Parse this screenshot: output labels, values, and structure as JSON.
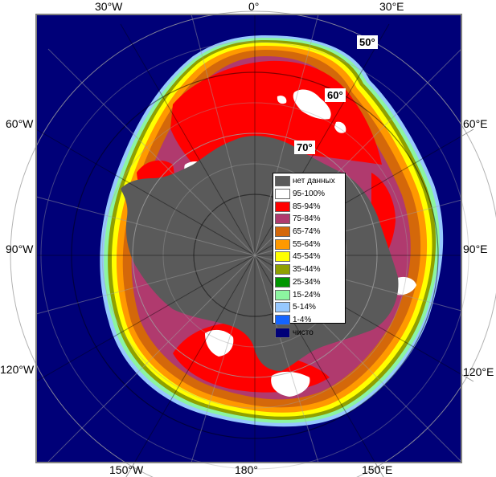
{
  "map": {
    "longitude_labels": [
      {
        "id": "lbl-30w-top",
        "text": "30°W"
      },
      {
        "id": "lbl-0",
        "text": "0°"
      },
      {
        "id": "lbl-30e-top",
        "text": "30°E"
      },
      {
        "id": "lbl-60w",
        "text": "60°W"
      },
      {
        "id": "lbl-60e",
        "text": "60°E"
      },
      {
        "id": "lbl-90w",
        "text": "90°W"
      },
      {
        "id": "lbl-90e",
        "text": "90°E"
      },
      {
        "id": "lbl-120w",
        "text": "120°W"
      },
      {
        "id": "lbl-120e",
        "text": "120°E"
      },
      {
        "id": "lbl-150w",
        "text": "150°W"
      },
      {
        "id": "lbl-180",
        "text": "180°"
      },
      {
        "id": "lbl-150e",
        "text": "150°E"
      }
    ],
    "latitude_labels": [
      {
        "id": "lat-50",
        "text": "50°"
      },
      {
        "id": "lat-60",
        "text": "60°"
      },
      {
        "id": "lat-70",
        "text": "70°"
      }
    ]
  },
  "legend": {
    "items": [
      {
        "label": "нет данных",
        "color": "#5a5a5a"
      },
      {
        "label": "95-100%",
        "color": "#ffffff"
      },
      {
        "label": "85-94%",
        "color": "#ff0000"
      },
      {
        "label": "75-84%",
        "color": "#b03a6e"
      },
      {
        "label": "65-74%",
        "color": "#d4680a"
      },
      {
        "label": "55-64%",
        "color": "#ff9900"
      },
      {
        "label": "45-54%",
        "color": "#ffff00"
      },
      {
        "label": "35-44%",
        "color": "#8fa000"
      },
      {
        "label": "25-34%",
        "color": "#009600"
      },
      {
        "label": "15-24%",
        "color": "#8cf5a0"
      },
      {
        "label": "5-14%",
        "color": "#96c8ff"
      },
      {
        "label": "1-4%",
        "color": "#1464ff"
      },
      {
        "label": "чисто",
        "color": "#000078"
      }
    ]
  },
  "colors": {
    "ocean": "#000078",
    "land": "#5a5a5a",
    "frame": "#808080",
    "grid": "#a0a0a0"
  }
}
